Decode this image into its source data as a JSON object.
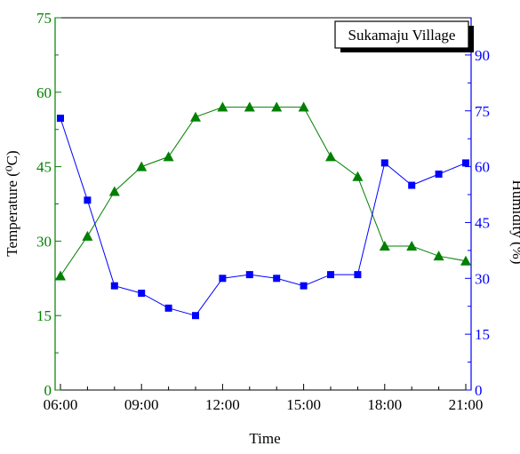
{
  "chart_data": {
    "type": "line",
    "legend_box_label": "Sukamaju Village",
    "xlabel": "Time",
    "ylabel_left": "Temperature (⁰C)",
    "ylabel_right": "Humidity (%)",
    "x_ticks": [
      "06:00",
      "09:00",
      "12:00",
      "15:00",
      "18:00",
      "21:00"
    ],
    "x_hours": [
      6,
      7,
      8,
      9,
      10,
      11,
      12,
      13,
      14,
      15,
      16,
      17,
      18,
      19,
      20,
      21
    ],
    "x_labels": [
      "06:00",
      "07:00",
      "08:00",
      "09:00",
      "10:00",
      "11:00",
      "12:00",
      "13:00",
      "14:00",
      "15:00",
      "16:00",
      "17:00",
      "18:00",
      "19:00",
      "20:00",
      "21:00"
    ],
    "xlim": [
      "06:00",
      "21:00"
    ],
    "ylim_left": [
      0,
      75
    ],
    "ylim_right": [
      0,
      100
    ],
    "yticks_left": [
      0,
      15,
      30,
      45,
      60,
      75
    ],
    "yticks_right": [
      0,
      15,
      30,
      45,
      60,
      75,
      90
    ],
    "grid": false,
    "legend_position": "top-right",
    "series": [
      {
        "axis": "left",
        "color": "#008000",
        "marker": "triangle",
        "values": [
          23,
          31,
          40,
          45,
          47,
          55,
          57,
          57,
          57,
          57,
          47,
          43,
          29,
          29,
          27,
          26
        ]
      },
      {
        "axis": "right",
        "color": "#0000FF",
        "marker": "square",
        "values": [
          73,
          51,
          28,
          26,
          22,
          20,
          30,
          31,
          30,
          28,
          31,
          31,
          61,
          55,
          58,
          61
        ]
      }
    ],
    "axis_colors": {
      "left": "#008000",
      "right": "#0000FF",
      "bottom": "#000000"
    }
  }
}
